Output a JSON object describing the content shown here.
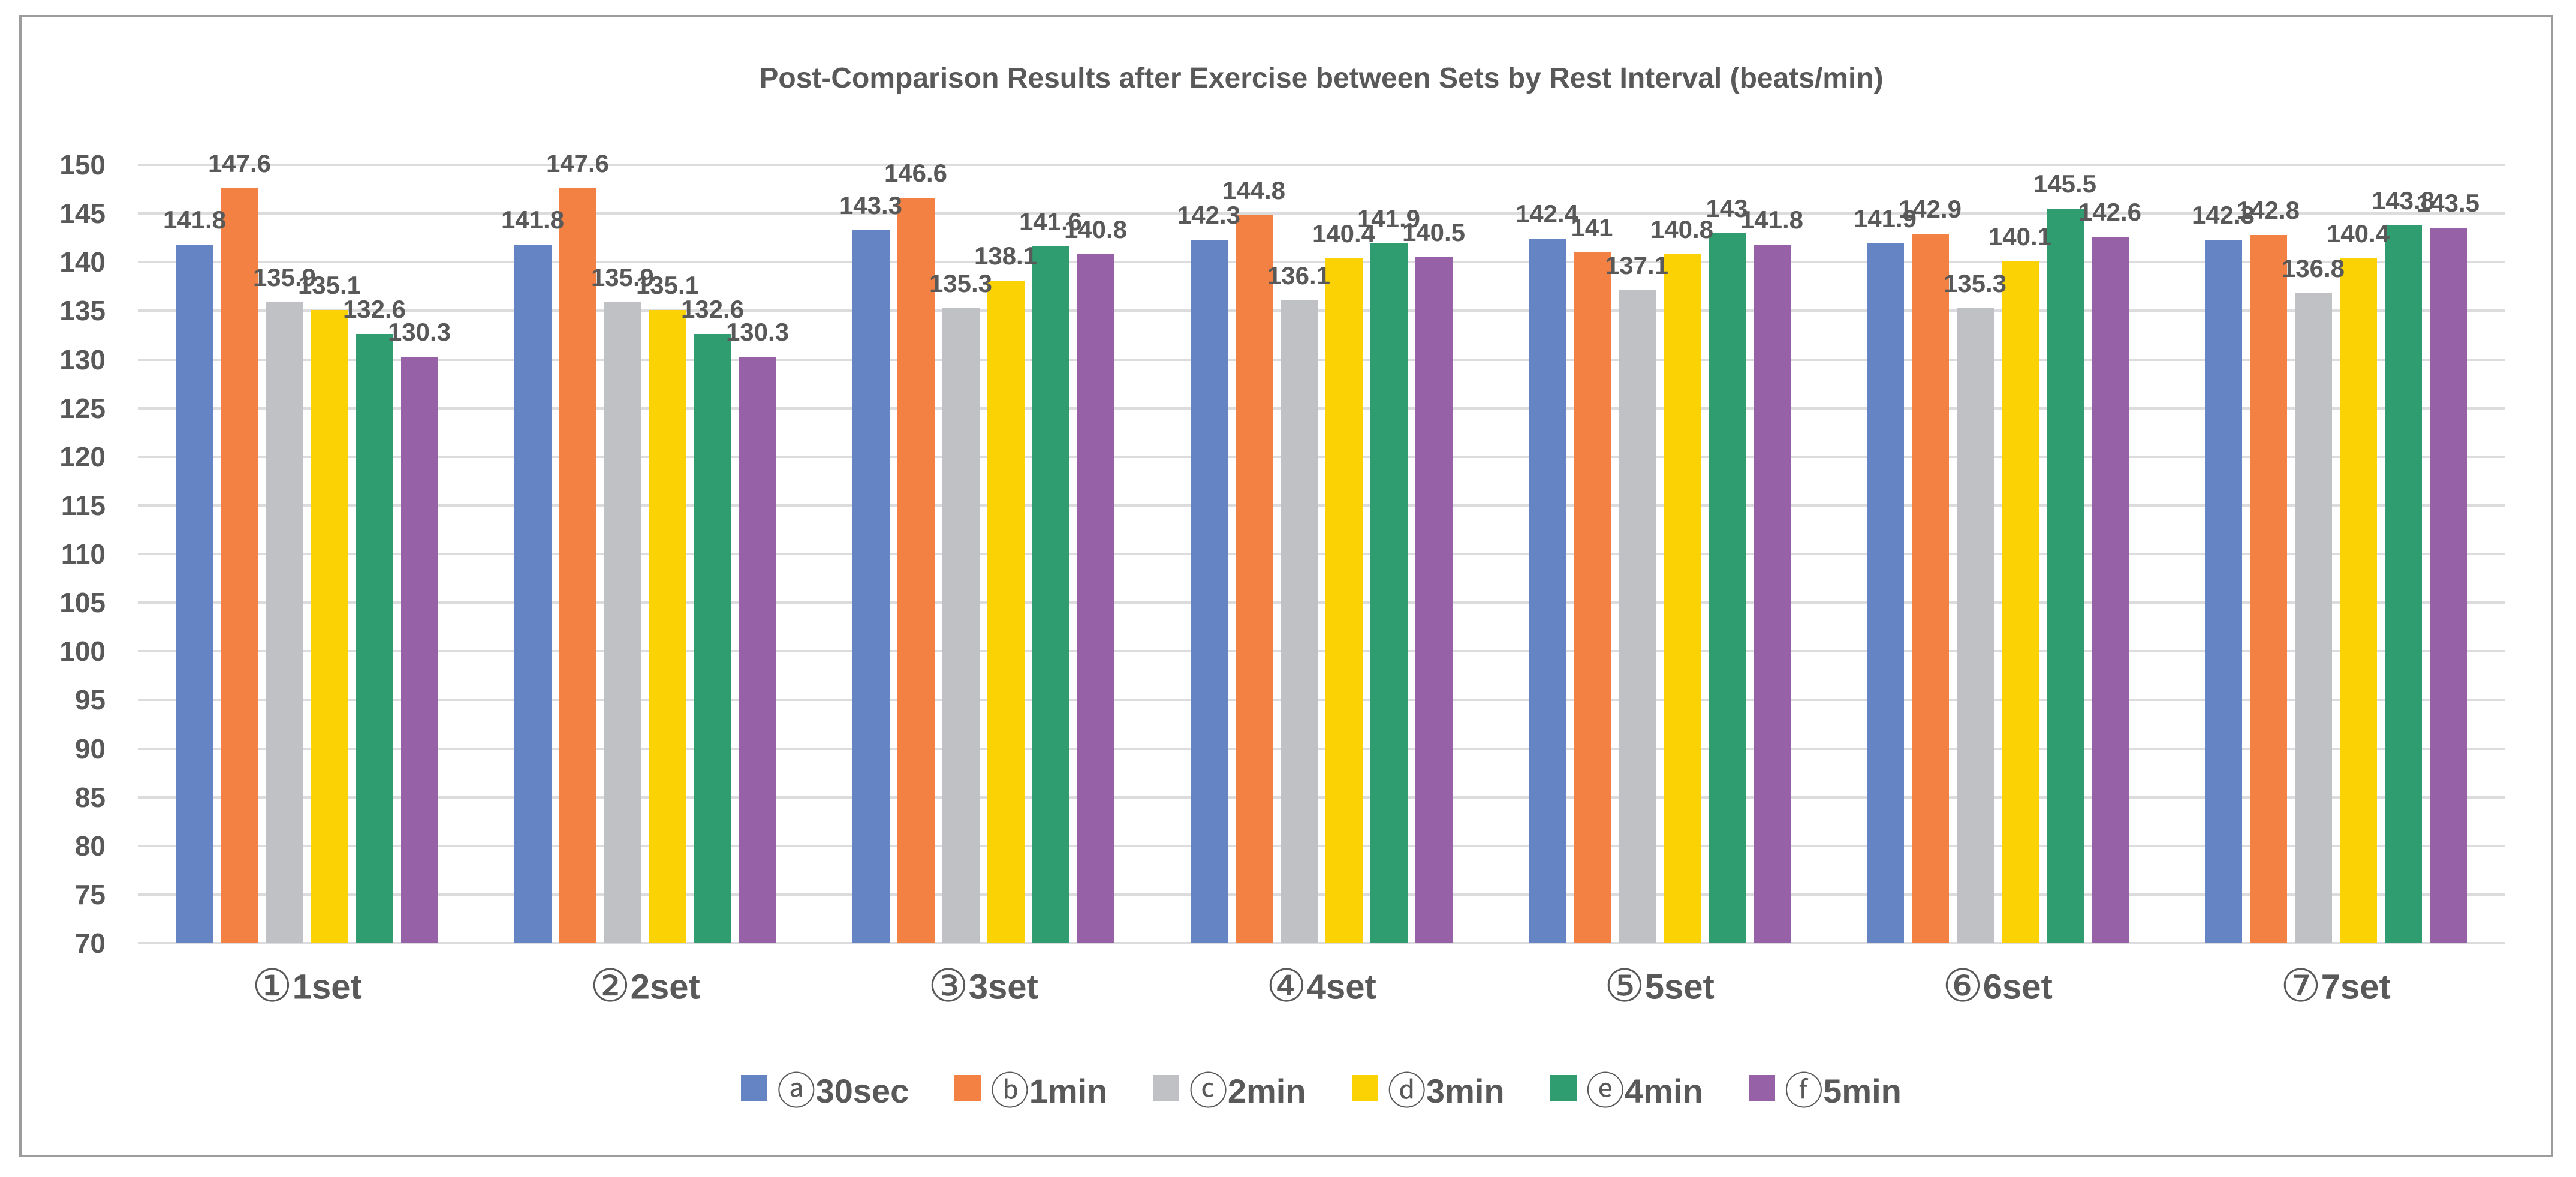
{
  "chart_data": {
    "type": "bar",
    "title": "Post-Comparison Results after Exercise between Sets by Rest Interval (beats/min)",
    "unit": "beats/min",
    "categories": [
      {
        "symbol": "①",
        "label": "1set"
      },
      {
        "symbol": "②",
        "label": "2set"
      },
      {
        "symbol": "③",
        "label": "3set"
      },
      {
        "symbol": "④",
        "label": "4set"
      },
      {
        "symbol": "⑤",
        "label": "5set"
      },
      {
        "symbol": "⑥",
        "label": "6set"
      },
      {
        "symbol": "⑦",
        "label": "7set"
      }
    ],
    "series": [
      {
        "symbol": "ⓐ",
        "label": "30sec",
        "color": "#6584c3",
        "values": [
          141.8,
          141.8,
          143.3,
          142.3,
          142.4,
          141.9,
          142.3
        ],
        "labels": [
          "141.8",
          "141.8",
          "143.3",
          "142.3",
          "142.4",
          "141.9",
          "142.3"
        ]
      },
      {
        "symbol": "ⓑ",
        "label": "1min",
        "color": "#f28143",
        "values": [
          147.6,
          147.6,
          146.6,
          144.8,
          141,
          142.9,
          142.8
        ],
        "labels": [
          "147.6",
          "147.6",
          "146.6",
          "144.8",
          "141",
          "142.9",
          "142.8"
        ]
      },
      {
        "symbol": "ⓒ",
        "label": "2min",
        "color": "#c0c1c5",
        "values": [
          135.9,
          135.9,
          135.3,
          136.1,
          137.1,
          135.3,
          136.8
        ],
        "labels": [
          "135.9",
          "135.9",
          "135.3",
          "136.1",
          "137.1",
          "135.3",
          "136.8"
        ]
      },
      {
        "symbol": "ⓓ",
        "label": "3min",
        "color": "#fbd304",
        "values": [
          135.1,
          135.1,
          138.1,
          140.4,
          140.8,
          140.1,
          140.4
        ],
        "labels": [
          "135.1",
          "135.1",
          "138.1",
          "140.4",
          "140.8",
          "140.1",
          "140.4"
        ]
      },
      {
        "symbol": "ⓔ",
        "label": "4min",
        "color": "#2f9d6f",
        "values": [
          132.6,
          132.6,
          141.6,
          141.9,
          143,
          145.5,
          143.8
        ],
        "labels": [
          "132.6",
          "132.6",
          "141.6",
          "141.9",
          "143",
          "145.5",
          "143.8"
        ]
      },
      {
        "symbol": "ⓕ",
        "label": "5min",
        "color": "#9661a7",
        "values": [
          130.3,
          130.3,
          140.8,
          140.5,
          141.8,
          142.6,
          143.5
        ],
        "labels": [
          "130.3",
          "130.3",
          "140.8",
          "140.5",
          "141.8",
          "142.6",
          "143.5"
        ]
      }
    ],
    "y_ticks": [
      "150",
      "145",
      "140",
      "135",
      "130",
      "125",
      "120",
      "115",
      "110",
      "105",
      "100",
      "95",
      "90",
      "85",
      "80",
      "75",
      "70"
    ],
    "ylim": [
      70,
      150
    ],
    "ytick_step": 5,
    "grid": true,
    "legend_position": "bottom",
    "colors": {
      "text": "#595959",
      "gridline": "#dcdcde",
      "frame_border": "#9c9c9c",
      "background": "#ffffff"
    }
  }
}
